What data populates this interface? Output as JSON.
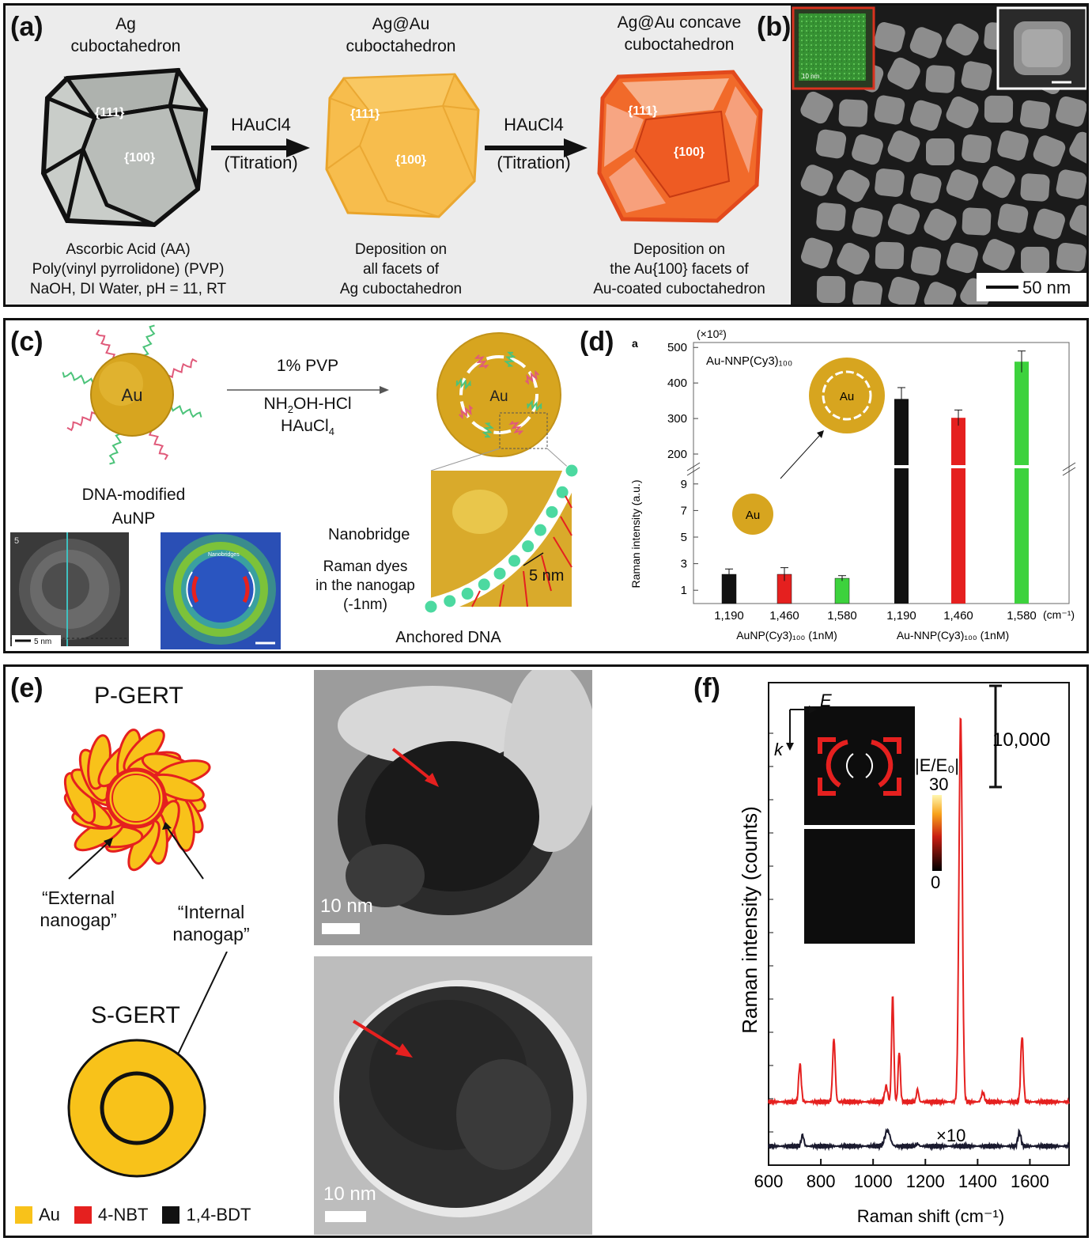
{
  "figure": {
    "a": {
      "label": "(a)",
      "stage1_title_l1": "Ag",
      "stage1_title_l2": "cuboctahedron",
      "stage2_title_l1": "Ag@Au",
      "stage2_title_l2": "cuboctahedron",
      "stage3_title_l1": "Ag@Au concave",
      "stage3_title_l2": "cuboctahedron",
      "facet_111": "{111}",
      "facet_100": "{100}",
      "arrow_reagent": "HAuCl4",
      "arrow_mode": "(Titration)",
      "cond_l1": "Ascorbic Acid (AA)",
      "cond_l2": "Poly(vinyl pyrrolidone) (PVP)",
      "cond_l3": "NaOH, DI Water, pH = 11, RT",
      "dep1_l1": "Deposition on",
      "dep1_l2": "all facets of",
      "dep1_l3": "Ag cuboctahedron",
      "dep2_l1": "Deposition on",
      "dep2_l2": "the Au{100} facets of",
      "dep2_l3": "Au-coated cuboctahedron"
    },
    "b": {
      "label": "(b)",
      "scalebar": "50 nm",
      "inset_scale": "10 nm"
    },
    "c": {
      "label": "(c)",
      "core": "Au",
      "reagent_l1": "1% PVP",
      "reagent_l2": "NH2OH-HCl",
      "reagent_l3": "HAuCl4",
      "np_l1": "DNA-modified",
      "np_l2": "AuNP",
      "nanobridge": "Nanobridge",
      "dyes_l1": "Raman dyes",
      "dyes_l2": "in the nanogap",
      "dyes_l3": "(-1nm)",
      "gap": "5 nm",
      "anchored": "Anchored DNA",
      "tem_scale": "5 nm",
      "tem_index": "5",
      "sim_label": "Nanobridges"
    },
    "d": {
      "label": "(d)",
      "sublabel": "a",
      "multiplier": "(×10²)",
      "inset_title": "Au-NNP(Cy3)₁₀₀",
      "core": "Au",
      "unit": "(cm⁻¹)",
      "group1": "AuNP(Cy3)₁₀₀ (1nM)",
      "group2": "Au-NNP(Cy3)₁₀₀ (1nM)"
    },
    "e": {
      "label": "(e)",
      "pgert": "P-GERT",
      "sgert": "S-GERT",
      "external_l1": "“External",
      "external_l2": "nanogap”",
      "internal_l1": "“Internal",
      "internal_l2": "nanogap”",
      "tem_scale": "10 nm",
      "legend": [
        {
          "name": "Au",
          "color": "#f8c21a"
        },
        {
          "name": "4-NBT",
          "color": "#e5201f"
        },
        {
          "name": "1,4-BDT",
          "color": "#111111"
        }
      ]
    },
    "f": {
      "label": "(f)",
      "e_vec": "E",
      "k_vec": "k",
      "field_label": "|E/E₀|",
      "cmax": "30",
      "cmin": "0",
      "scale_value": "10,000",
      "times10": "×10"
    }
  },
  "chart_data": [
    {
      "panel": "d",
      "type": "bar",
      "title": "",
      "xlabel": "",
      "ylabel": "Raman intensity (a.u.)",
      "y_axis_note": "broken axis: lower segment 0–10, upper segment 180–500, upper values ×10²",
      "yticks_lower": [
        1,
        3,
        5,
        7,
        9
      ],
      "yticks_upper": [
        200,
        300,
        400,
        500
      ],
      "categories": [
        "1,190",
        "1,460",
        "1,580",
        "1,190",
        "1,460",
        "1,580"
      ],
      "groups": [
        "AuNP(Cy3)₁₀₀ (1nM)",
        "Au-NNP(Cy3)₁₀₀ (1nM)"
      ],
      "values": [
        2.2,
        2.2,
        1.9,
        355,
        302,
        460
      ],
      "errors": [
        0.4,
        0.5,
        0.2,
        32,
        22,
        30
      ],
      "colors": [
        "#111111",
        "#e5201f",
        "#3dd23d",
        "#111111",
        "#e5201f",
        "#3dd23d"
      ]
    },
    {
      "panel": "f",
      "type": "line",
      "title": "",
      "xlabel": "Raman shift (cm⁻¹)",
      "ylabel": "Raman intensity (counts)",
      "xlim": [
        600,
        1750
      ],
      "xticks": [
        600,
        800,
        1000,
        1200,
        1400,
        1600
      ],
      "series": [
        {
          "color": "#e5201f",
          "baseline": 1.0,
          "peaks": [
            [
              720,
              1.2,
              7
            ],
            [
              850,
              2.0,
              7
            ],
            [
              1050,
              0.5,
              8
            ],
            [
              1075,
              3.4,
              6
            ],
            [
              1100,
              1.6,
              6
            ],
            [
              1170,
              0.4,
              6
            ],
            [
              1335,
              12.2,
              9
            ],
            [
              1420,
              0.3,
              8
            ],
            [
              1570,
              2.1,
              7
            ]
          ]
        },
        {
          "color": "#1a1a2e",
          "baseline": 0.15,
          "peaks": [
            [
              730,
              0.35,
              7
            ],
            [
              1055,
              0.5,
              14
            ],
            [
              1170,
              0.08,
              6
            ],
            [
              1560,
              0.45,
              8
            ]
          ]
        }
      ]
    }
  ]
}
